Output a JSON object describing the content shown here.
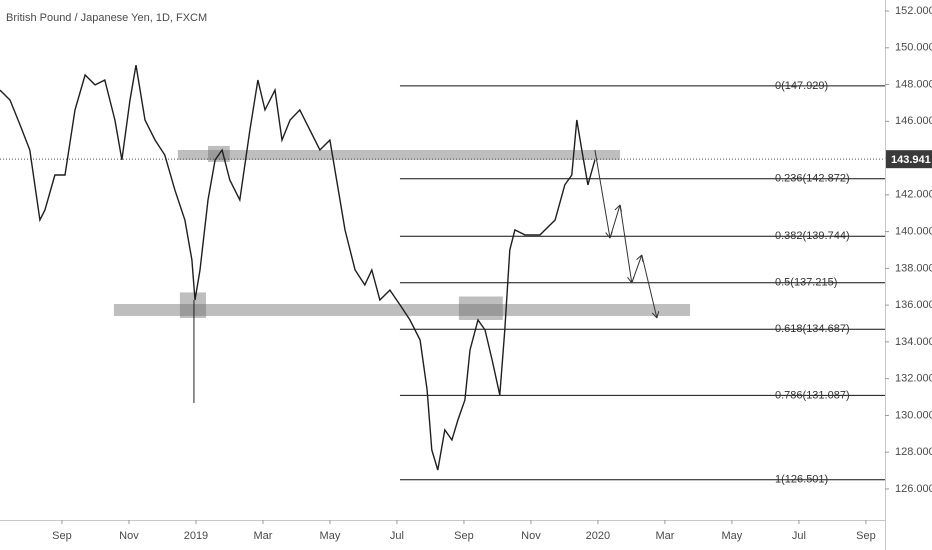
{
  "chart_data": {
    "type": "line",
    "title": "British Pound / Japanese Yen, 1D, FXCM",
    "x": [
      -1.85,
      -1.55,
      -1.25,
      -0.96,
      -0.66,
      -0.51,
      -0.21,
      0.09,
      0.39,
      0.69,
      0.99,
      1.28,
      1.58,
      1.79,
      2.03,
      2.21,
      2.48,
      2.78,
      3.07,
      3.37,
      3.67,
      3.88,
      3.97,
      4.12,
      4.36,
      4.57,
      4.78,
      5.01,
      5.31,
      5.61,
      5.85,
      6.06,
      6.36,
      6.57,
      6.81,
      7.1,
      7.4,
      7.7,
      8.0,
      8.3,
      8.45,
      8.75,
      9.04,
      9.25,
      9.49,
      9.79,
      10.09,
      10.39,
      10.69,
      10.9,
      11.04,
      11.22,
      11.43,
      11.64,
      11.82,
      12.03,
      12.18,
      12.42,
      12.63,
      12.84,
      13.07,
      13.22,
      13.37,
      13.52,
      13.82,
      14.27,
      14.72,
      15.01,
      15.22,
      15.37,
      15.52,
      15.7,
      15.91
    ],
    "series": [
      {
        "name": "GBPJPY",
        "color": "#1f1f1f",
        "values": [
          147.7,
          147.16,
          145.8,
          144.44,
          140.63,
          141.17,
          143.08,
          143.08,
          146.62,
          148.52,
          147.98,
          148.25,
          146.07,
          143.9,
          147.16,
          149.06,
          146.07,
          144.98,
          144.17,
          142.26,
          140.63,
          138.46,
          136.28,
          137.91,
          141.72,
          143.9,
          144.44,
          142.81,
          141.72,
          145.53,
          148.25,
          146.62,
          147.7,
          144.98,
          146.07,
          146.62,
          145.53,
          144.44,
          144.98,
          141.72,
          140.09,
          137.91,
          137.1,
          137.91,
          136.28,
          136.82,
          136.01,
          135.19,
          134.1,
          131.39,
          128.12,
          127.03,
          129.21,
          128.67,
          129.75,
          130.84,
          133.56,
          135.19,
          134.65,
          133.02,
          131.11,
          134.65,
          139.0,
          140.09,
          139.82,
          139.82,
          140.63,
          142.54,
          143.08,
          146.07,
          144.44,
          142.54,
          143.9
        ]
      }
    ],
    "wick": {
      "x": 3.94,
      "low": 130.68,
      "high": 136.28
    },
    "projection": {
      "x": [
        15.91,
        16.36,
        16.66,
        17.01,
        17.31,
        17.76
      ],
      "values": [
        144.44,
        139.65,
        141.45,
        137.21,
        138.73,
        135.3
      ]
    },
    "zones": [
      {
        "x": [
          3.46,
          16.66
        ],
        "y": [
          143.9,
          144.44
        ]
      },
      {
        "x": [
          1.55,
          18.75
        ],
        "y": [
          135.41,
          136.06
        ]
      },
      {
        "x": [
          3.52,
          4.3
        ],
        "y": [
          135.3,
          136.69
        ]
      },
      {
        "x": [
          4.36,
          5.01
        ],
        "y": [
          143.79,
          144.66
        ]
      },
      {
        "x": [
          11.85,
          13.16
        ],
        "y": [
          135.19,
          136.47
        ]
      }
    ],
    "fib": {
      "x": [
        10.09,
        24.57
      ],
      "levels": [
        {
          "value": 147.929,
          "label": "0(147.929)"
        },
        {
          "value": 142.872,
          "label": "0.236(142.872)"
        },
        {
          "value": 139.744,
          "label": "0.382(139.744)"
        },
        {
          "value": 137.215,
          "label": "0.5(137.215)"
        },
        {
          "value": 134.687,
          "label": "0.618(134.687)"
        },
        {
          "value": 131.087,
          "label": "0.786(131.087)"
        },
        {
          "value": 126.501,
          "label": "1(126.501)"
        }
      ]
    },
    "current_price": 143.941,
    "xlim": [
      -1.85,
      24.57
    ],
    "ylim": [
      124.31,
      152.6
    ],
    "xticks": [
      {
        "value": 0,
        "label": "Sep"
      },
      {
        "value": 2,
        "label": "Nov"
      },
      {
        "value": 4,
        "label": "2019"
      },
      {
        "value": 6,
        "label": "Mar"
      },
      {
        "value": 8,
        "label": "May"
      },
      {
        "value": 10,
        "label": "Jul"
      },
      {
        "value": 12,
        "label": "Sep"
      },
      {
        "value": 14,
        "label": "Nov"
      },
      {
        "value": 16,
        "label": "2020"
      },
      {
        "value": 18,
        "label": "Mar"
      },
      {
        "value": 20,
        "label": "May"
      },
      {
        "value": 22,
        "label": "Jul"
      },
      {
        "value": 24,
        "label": "Sep"
      }
    ],
    "yticks": [
      {
        "value": 126,
        "label": "126.000"
      },
      {
        "value": 128,
        "label": "128.000"
      },
      {
        "value": 130,
        "label": "130.000"
      },
      {
        "value": 132,
        "label": "132.000"
      },
      {
        "value": 134,
        "label": "134.000"
      },
      {
        "value": 136,
        "label": "136.000"
      },
      {
        "value": 138,
        "label": "138.000"
      },
      {
        "value": 140,
        "label": "140.000"
      },
      {
        "value": 142,
        "label": "142.000"
      },
      {
        "value": 144,
        "label": "144.000"
      },
      {
        "value": 146,
        "label": "146.000"
      },
      {
        "value": 148,
        "label": "148.000"
      },
      {
        "value": 150,
        "label": "150.000"
      },
      {
        "value": 152,
        "label": "152.000"
      }
    ]
  }
}
